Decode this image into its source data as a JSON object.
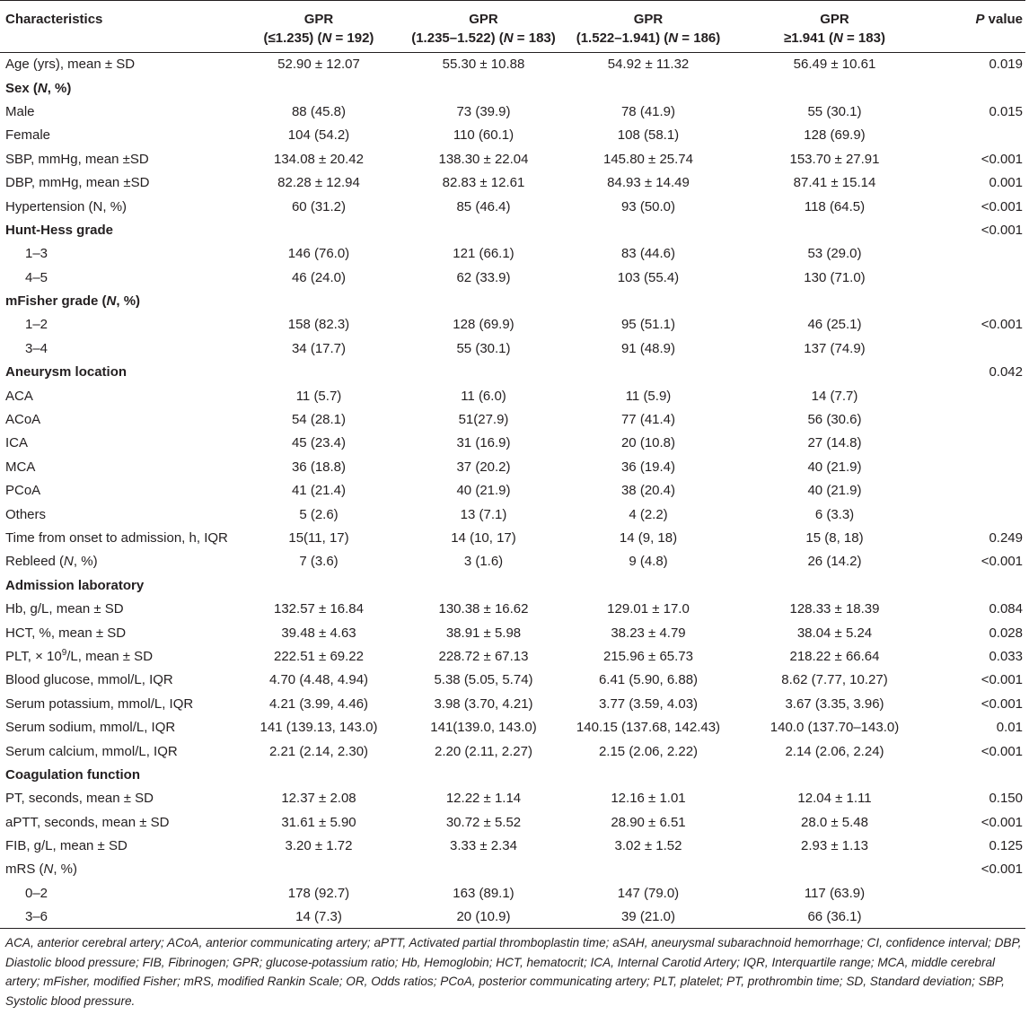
{
  "table": {
    "headers": [
      {
        "lines": [
          {
            "text": "Characteristics"
          }
        ]
      },
      {
        "lines": [
          {
            "text": "GPR"
          },
          {
            "text": "(≤1.235) (",
            "em": "N",
            "tail": " = 192)"
          }
        ]
      },
      {
        "lines": [
          {
            "text": "GPR"
          },
          {
            "text": "(1.235–1.522) (",
            "em": "N",
            "tail": " = 183)"
          }
        ]
      },
      {
        "lines": [
          {
            "text": "GPR"
          },
          {
            "text": "(1.522–1.941) (",
            "em": "N",
            "tail": " = 186)"
          }
        ]
      },
      {
        "lines": [
          {
            "text": "GPR"
          },
          {
            "text": "≥1.941 (",
            "em": "N",
            "tail": " = 183)"
          }
        ]
      },
      {
        "lines": [
          {
            "text": "",
            "em": "P",
            "tail": " value"
          }
        ]
      }
    ],
    "rows": [
      {
        "label": "Age (yrs), mean ± SD",
        "values": [
          "52.90 ± 12.07",
          "55.30 ± 10.88",
          "54.92 ± 11.32",
          "56.49 ± 10.61"
        ],
        "p": "0.019"
      },
      {
        "label": "Sex (",
        "label_em": "N",
        "label_tail": ", %)",
        "section": true,
        "values": [
          "",
          "",
          "",
          ""
        ],
        "p": ""
      },
      {
        "label": "Male",
        "values": [
          "88 (45.8)",
          "73 (39.9)",
          "78 (41.9)",
          "55 (30.1)"
        ],
        "p": "0.015"
      },
      {
        "label": "Female",
        "values": [
          "104 (54.2)",
          "110 (60.1)",
          "108 (58.1)",
          "128 (69.9)"
        ],
        "p": ""
      },
      {
        "label": "SBP, mmHg, mean ±SD",
        "values": [
          "134.08 ± 20.42",
          "138.30 ± 22.04",
          "145.80 ± 25.74",
          "153.70 ± 27.91"
        ],
        "p": "<0.001"
      },
      {
        "label": "DBP, mmHg, mean ±SD",
        "values": [
          "82.28 ± 12.94",
          "82.83 ± 12.61",
          "84.93 ± 14.49",
          "87.41 ± 15.14"
        ],
        "p": "0.001"
      },
      {
        "label": "Hypertension (N, %)",
        "values": [
          "60 (31.2)",
          "85 (46.4)",
          "93 (50.0)",
          "118 (64.5)"
        ],
        "p": "<0.001"
      },
      {
        "label": "Hunt-Hess grade",
        "section": true,
        "values": [
          "",
          "",
          "",
          ""
        ],
        "p": "<0.001"
      },
      {
        "label": "1–3",
        "indent": true,
        "values": [
          "146 (76.0)",
          "121 (66.1)",
          "83 (44.6)",
          "53 (29.0)"
        ],
        "p": ""
      },
      {
        "label": "4–5",
        "indent": true,
        "values": [
          "46 (24.0)",
          "62 (33.9)",
          "103 (55.4)",
          "130 (71.0)"
        ],
        "p": ""
      },
      {
        "label": "mFisher grade (",
        "label_em": "N",
        "label_tail": ", %)",
        "section": true,
        "values": [
          "",
          "",
          "",
          ""
        ],
        "p": ""
      },
      {
        "label": "1–2",
        "indent": true,
        "values": [
          "158 (82.3)",
          "128 (69.9)",
          "95 (51.1)",
          "46 (25.1)"
        ],
        "p": "<0.001"
      },
      {
        "label": "3–4",
        "indent": true,
        "values": [
          "34 (17.7)",
          "55 (30.1)",
          "91 (48.9)",
          "137 (74.9)"
        ],
        "p": ""
      },
      {
        "label": "Aneurysm location",
        "section": true,
        "values": [
          "",
          "",
          "",
          ""
        ],
        "p": "0.042"
      },
      {
        "label": "ACA",
        "values": [
          "11 (5.7)",
          "11 (6.0)",
          "11 (5.9)",
          "14 (7.7)"
        ],
        "p": ""
      },
      {
        "label": "ACoA",
        "values": [
          "54 (28.1)",
          "51(27.9)",
          "77 (41.4)",
          "56 (30.6)"
        ],
        "p": ""
      },
      {
        "label": "ICA",
        "values": [
          "45 (23.4)",
          "31 (16.9)",
          "20 (10.8)",
          "27 (14.8)"
        ],
        "p": ""
      },
      {
        "label": "MCA",
        "values": [
          "36 (18.8)",
          "37 (20.2)",
          "36 (19.4)",
          "40 (21.9)"
        ],
        "p": ""
      },
      {
        "label": "PCoA",
        "values": [
          "41 (21.4)",
          "40 (21.9)",
          "38 (20.4)",
          "40 (21.9)"
        ],
        "p": ""
      },
      {
        "label": "Others",
        "values": [
          "5 (2.6)",
          "13 (7.1)",
          "4 (2.2)",
          "6 (3.3)"
        ],
        "p": ""
      },
      {
        "label": "Time from onset to admission, h, IQR",
        "values": [
          "15(11, 17)",
          "14 (10, 17)",
          "14 (9, 18)",
          "15 (8, 18)"
        ],
        "p": "0.249"
      },
      {
        "label": "Rebleed (",
        "label_em": "N",
        "label_tail": ", %)",
        "values": [
          "7 (3.6)",
          "3 (1.6)",
          "9 (4.8)",
          "26 (14.2)"
        ],
        "p": "<0.001"
      },
      {
        "label": "Admission laboratory",
        "section": true,
        "values": [
          "",
          "",
          "",
          ""
        ],
        "p": ""
      },
      {
        "label": "Hb, g/L, mean ± SD",
        "values": [
          "132.57 ± 16.84",
          "130.38 ± 16.62",
          "129.01 ± 17.0",
          "128.33 ± 18.39"
        ],
        "p": "0.084"
      },
      {
        "label": "HCT, %, mean ± SD",
        "values": [
          "39.48 ± 4.63",
          "38.91 ± 5.98",
          "38.23 ± 4.79",
          "38.04 ± 5.24"
        ],
        "p": "0.028"
      },
      {
        "label": "PLT, × 10",
        "label_sup": "9",
        "label_tail": "/L, mean ± SD",
        "values": [
          "222.51 ± 69.22",
          "228.72 ± 67.13",
          "215.96 ± 65.73",
          "218.22 ± 66.64"
        ],
        "p": "0.033"
      },
      {
        "label": "Blood glucose, mmol/L, IQR",
        "values": [
          "4.70 (4.48, 4.94)",
          "5.38 (5.05, 5.74)",
          "6.41 (5.90, 6.88)",
          "8.62 (7.77, 10.27)"
        ],
        "p": "<0.001"
      },
      {
        "label": "Serum potassium, mmol/L, IQR",
        "values": [
          "4.21 (3.99, 4.46)",
          "3.98 (3.70, 4.21)",
          "3.77 (3.59, 4.03)",
          "3.67 (3.35, 3.96)"
        ],
        "p": "<0.001"
      },
      {
        "label": "Serum sodium, mmol/L, IQR",
        "values": [
          "141 (139.13, 143.0)",
          "141(139.0, 143.0)",
          "140.15 (137.68, 142.43)",
          "140.0 (137.70–143.0)"
        ],
        "p": "0.01"
      },
      {
        "label": "Serum calcium, mmol/L, IQR",
        "values": [
          "2.21 (2.14, 2.30)",
          "2.20 (2.11, 2.27)",
          "2.15 (2.06, 2.22)",
          "2.14 (2.06, 2.24)"
        ],
        "p": "<0.001"
      },
      {
        "label": "Coagulation function",
        "section": true,
        "values": [
          "",
          "",
          "",
          ""
        ],
        "p": ""
      },
      {
        "label": "PT, seconds, mean ± SD",
        "values": [
          "12.37 ± 2.08",
          "12.22 ± 1.14",
          "12.16 ± 1.01",
          "12.04 ± 1.11"
        ],
        "p": "0.150"
      },
      {
        "label": "aPTT, seconds, mean ± SD",
        "values": [
          "31.61 ± 5.90",
          "30.72 ± 5.52",
          "28.90 ± 6.51",
          "28.0 ± 5.48"
        ],
        "p": "<0.001"
      },
      {
        "label": "FIB, g/L, mean ± SD",
        "values": [
          "3.20 ± 1.72",
          "3.33 ± 2.34",
          "3.02 ± 1.52",
          "2.93 ± 1.13"
        ],
        "p": "0.125"
      },
      {
        "label": "mRS (",
        "label_em": "N",
        "label_tail": ", %)",
        "values": [
          "",
          "",
          "",
          ""
        ],
        "p": "<0.001"
      },
      {
        "label": "0–2",
        "indent": true,
        "values": [
          "178 (92.7)",
          "163 (89.1)",
          "147 (79.0)",
          "117 (63.9)"
        ],
        "p": ""
      },
      {
        "label": "3–6",
        "indent": true,
        "values": [
          "14 (7.3)",
          "20 (10.9)",
          "39 (21.0)",
          "66 (36.1)"
        ],
        "p": ""
      }
    ]
  },
  "footnote": "ACA, anterior cerebral artery; ACoA, anterior communicating artery; aPTT, Activated partial thromboplastin time; aSAH, aneurysmal subarachnoid hemorrhage; CI, confidence interval; DBP, Diastolic blood pressure; FIB, Fibrinogen; GPR; glucose-potassium ratio; Hb, Hemoglobin; HCT, hematocrit; ICA, Internal Carotid Artery; IQR, Interquartile range; MCA, middle cerebral artery; mFisher, modified Fisher; mRS, modified Rankin Scale; OR, Odds ratios; PCoA, posterior communicating artery; PLT, platelet; PT, prothrombin time; SD, Standard deviation; SBP, Systolic blood pressure."
}
